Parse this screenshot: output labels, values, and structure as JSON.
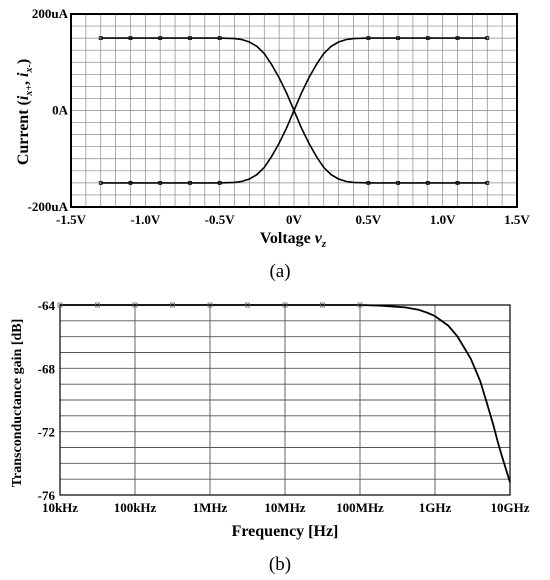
{
  "chart_data": [
    {
      "type": "line",
      "panel": "(a)",
      "xlabel": "Voltage",
      "xlabel_var": "v",
      "xlabel_sub": "z",
      "ylabel": "Current",
      "ylabel_var_1": "i",
      "ylabel_sub_1": "x+",
      "ylabel_var_2": "i",
      "ylabel_sub_2": "x-",
      "xlim": [
        -1.5,
        1.5
      ],
      "ylim": [
        -200,
        200
      ],
      "y_unit": "uA",
      "x_ticks": [
        -1.5,
        -1.0,
        -0.5,
        0,
        0.5,
        1.0,
        1.5
      ],
      "x_tick_labels": [
        "-1.5V",
        "-1.0V",
        "-0.5V",
        "0V",
        "0.5V",
        "1.0V",
        "1.5V"
      ],
      "y_ticks": [
        200,
        0,
        -200
      ],
      "y_tick_labels": [
        "200uA",
        "0A",
        "-200uA"
      ],
      "grid": true,
      "series": [
        {
          "x": [
            -1.3,
            -1.1,
            -0.9,
            -0.7,
            -0.5,
            -0.4,
            -0.35,
            -0.3,
            -0.25,
            -0.2,
            -0.15,
            -0.1,
            -0.05,
            0,
            0.05,
            0.1,
            0.15,
            0.2,
            0.25,
            0.3,
            0.35,
            0.4,
            0.5,
            0.7,
            0.9,
            1.1,
            1.3
          ],
          "y": [
            150,
            150,
            150,
            150,
            150,
            149,
            147,
            142,
            133,
            118,
            95,
            68,
            36,
            0,
            -36,
            -68,
            -95,
            -118,
            -133,
            -142,
            -147,
            -149,
            -150,
            -150,
            -150,
            -150,
            -150
          ]
        },
        {
          "x": [
            -1.3,
            -1.1,
            -0.9,
            -0.7,
            -0.5,
            -0.4,
            -0.35,
            -0.3,
            -0.25,
            -0.2,
            -0.15,
            -0.1,
            -0.05,
            0,
            0.05,
            0.1,
            0.15,
            0.2,
            0.25,
            0.3,
            0.35,
            0.4,
            0.5,
            0.7,
            0.9,
            1.1,
            1.3
          ],
          "y": [
            -150,
            -150,
            -150,
            -150,
            -150,
            -149,
            -147,
            -142,
            -133,
            -118,
            -95,
            -68,
            -36,
            0,
            36,
            68,
            95,
            118,
            133,
            142,
            147,
            149,
            150,
            150,
            150,
            150,
            150
          ]
        }
      ]
    },
    {
      "type": "line",
      "panel": "(b)",
      "xlabel": "Frequency [Hz]",
      "ylabel": "Transconductance gain [dB]",
      "x_scale": "log",
      "xlim": [
        10000,
        10000000000
      ],
      "ylim": [
        -76,
        -64
      ],
      "x_ticks": [
        10000,
        100000,
        1000000,
        10000000,
        100000000,
        1000000000,
        10000000000
      ],
      "x_tick_labels": [
        "10kHz",
        "100kHz",
        "1MHz",
        "10MHz",
        "100MHz",
        "1GHz",
        "10GHz"
      ],
      "y_ticks": [
        -64,
        -68,
        -72,
        -76
      ],
      "y_tick_labels": [
        "-64",
        "-68",
        "-72",
        "-76"
      ],
      "grid": true,
      "series": [
        {
          "x": [
            10000,
            50000,
            200000,
            1000000,
            5000000,
            20000000,
            100000000,
            200000000,
            400000000,
            600000000,
            800000000,
            1000000000,
            1500000000,
            2000000000,
            3000000000,
            4000000000,
            5000000000,
            6000000000,
            7000000000,
            8000000000,
            10000000000
          ],
          "y": [
            -64,
            -64,
            -64,
            -64,
            -64,
            -64,
            -64,
            -64.05,
            -64.15,
            -64.3,
            -64.5,
            -64.7,
            -65.3,
            -66.0,
            -67.4,
            -68.8,
            -70.3,
            -71.6,
            -72.8,
            -73.7,
            -75.2
          ]
        }
      ]
    }
  ]
}
